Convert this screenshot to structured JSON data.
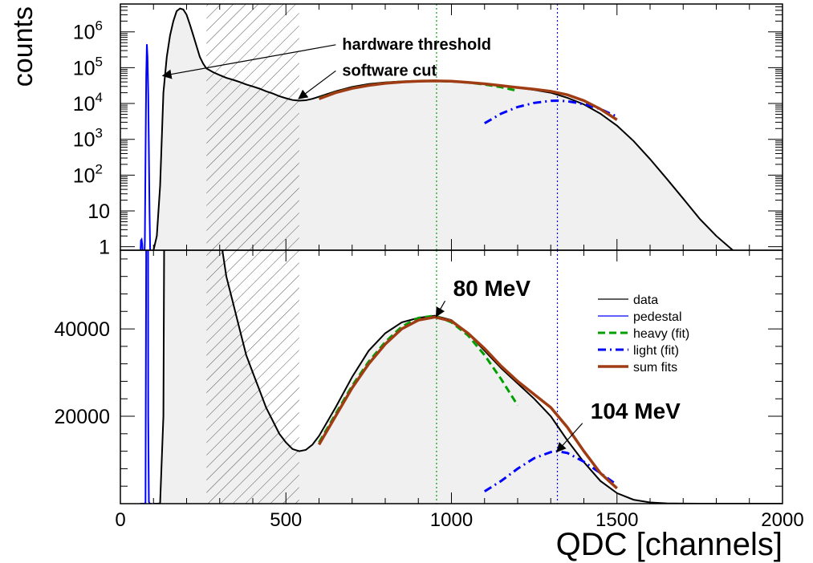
{
  "chart_data": {
    "type": "line",
    "xlabel": "QDC [channels]",
    "ylabel": "counts",
    "xlim": [
      0,
      2000
    ],
    "x_ticks": [
      "0",
      "500",
      "1000",
      "1500",
      "2000"
    ],
    "shaded_region": {
      "x_from": 260,
      "x_to": 540,
      "style": "hatched"
    },
    "grid": false,
    "legend_position": "right, lower panel",
    "colors": {
      "data": "#000000",
      "pedestal": "#0000ff",
      "heavy": "#00a000",
      "light": "#0000ff",
      "sum": "#a03c14",
      "fill": "#f0f0f0"
    },
    "legend": [
      {
        "key": "data",
        "label": "data",
        "style": "solid"
      },
      {
        "key": "pedestal",
        "label": "pedestal",
        "style": "solid"
      },
      {
        "key": "heavy",
        "label": "heavy (fit)",
        "style": "dashed"
      },
      {
        "key": "light",
        "label": "light (fit)",
        "style": "dashdot"
      },
      {
        "key": "sum",
        "label": "sum fits",
        "style": "thick"
      }
    ],
    "panels": [
      {
        "name": "log",
        "yscale": "log",
        "ylim": [
          0.8,
          6000000
        ],
        "ytick_labels": [
          {
            "v": 1,
            "t": "1",
            "sup": ""
          },
          {
            "v": 10,
            "t": "10",
            "sup": ""
          },
          {
            "v": 100,
            "t": "10",
            "sup": "2"
          },
          {
            "v": 1000,
            "t": "10",
            "sup": "3"
          },
          {
            "v": 10000,
            "t": "10",
            "sup": "4"
          },
          {
            "v": 100000,
            "t": "10",
            "sup": "5"
          },
          {
            "v": 1000000,
            "t": "10",
            "sup": "6"
          }
        ],
        "annotations": [
          {
            "text": "hardware threshold",
            "x": 670,
            "y": 320000,
            "arrow_to": [
              130,
              60000
            ]
          },
          {
            "text": "software cut",
            "x": 670,
            "y": 60000,
            "arrow_to": [
              540,
              14000
            ]
          }
        ]
      },
      {
        "name": "linear",
        "yscale": "linear",
        "ylim": [
          0,
          58000
        ],
        "ytick_labels": [
          {
            "v": 20000,
            "t": "20000",
            "sup": ""
          },
          {
            "v": 40000,
            "t": "40000",
            "sup": ""
          }
        ],
        "annotations": [
          {
            "text": "80 MeV",
            "x": 1005,
            "y": 47500,
            "arrow_to": [
              955,
              43000
            ]
          },
          {
            "text": "104 MeV",
            "x": 1420,
            "y": 19500,
            "arrow_to": [
              1320,
              12000
            ]
          }
        ]
      }
    ],
    "vertical_lines": [
      {
        "x": 955,
        "series": "heavy"
      },
      {
        "x": 1320,
        "series": "light"
      }
    ],
    "series": [
      {
        "key": "data",
        "name": "data",
        "x": [
          100,
          110,
          120,
          130,
          140,
          150,
          160,
          170,
          180,
          190,
          200,
          210,
          220,
          230,
          240,
          250,
          260,
          280,
          300,
          320,
          340,
          360,
          380,
          400,
          420,
          440,
          460,
          480,
          500,
          520,
          540,
          560,
          580,
          600,
          650,
          700,
          750,
          800,
          850,
          900,
          950,
          1000,
          1050,
          1100,
          1150,
          1200,
          1250,
          1300,
          1350,
          1400,
          1450,
          1500,
          1550,
          1600,
          1650,
          1700,
          1750,
          1800,
          1850,
          1900,
          1950,
          2000
        ],
        "y": [
          0.8,
          2,
          50,
          20000,
          200000,
          800000,
          2000000,
          3800000,
          4500000,
          4200000,
          3000000,
          1600000,
          800000,
          400000,
          200000,
          130000,
          95000,
          75000,
          62000,
          52000,
          46000,
          40000,
          34000,
          30000,
          26000,
          22000,
          19000,
          16000,
          14000,
          12500,
          12000,
          12300,
          13500,
          15500,
          22000,
          29000,
          35000,
          39000,
          41500,
          42500,
          43000,
          42000,
          39000,
          35000,
          31000,
          27500,
          24000,
          20000,
          14500,
          9500,
          5200,
          2400,
          900,
          280,
          80,
          22,
          6,
          2,
          0.8,
          0.3,
          0.1,
          0.05
        ]
      },
      {
        "key": "pedestal",
        "name": "pedestal",
        "x": [
          60,
          62,
          64,
          66,
          68,
          70,
          72,
          74,
          76,
          78,
          80,
          82,
          84,
          86,
          88,
          90,
          92,
          94
        ],
        "y": [
          0.5,
          1.5,
          1.6,
          1.2,
          0.5,
          0.3,
          0.3,
          1.5,
          300,
          60000,
          450000,
          200000,
          20000,
          500,
          10,
          0.8,
          0.5,
          0.3
        ]
      },
      {
        "key": "heavy",
        "name": "heavy (fit)",
        "x": [
          600,
          650,
          700,
          750,
          800,
          850,
          900,
          950,
          1000,
          1050,
          1100,
          1150,
          1200
        ],
        "y": [
          14000,
          20500,
          27000,
          32500,
          37000,
          40500,
          42500,
          43000,
          41500,
          38500,
          34000,
          28500,
          22500
        ]
      },
      {
        "key": "light",
        "name": "light (fit)",
        "x": [
          1100,
          1150,
          1200,
          1250,
          1300,
          1320,
          1350,
          1400,
          1450,
          1500
        ],
        "y": [
          2800,
          5200,
          8000,
          10400,
          11800,
          12000,
          11600,
          9600,
          7000,
          4300
        ]
      },
      {
        "key": "sum",
        "name": "sum fits",
        "x": [
          600,
          650,
          700,
          750,
          800,
          850,
          900,
          950,
          1000,
          1050,
          1100,
          1150,
          1200,
          1250,
          1300,
          1350,
          1400,
          1450,
          1500
        ],
        "y": [
          13500,
          20000,
          26500,
          32000,
          36500,
          40000,
          42000,
          42700,
          41800,
          39000,
          35500,
          31500,
          28000,
          25000,
          22000,
          17500,
          12000,
          7000,
          3500
        ]
      }
    ]
  }
}
